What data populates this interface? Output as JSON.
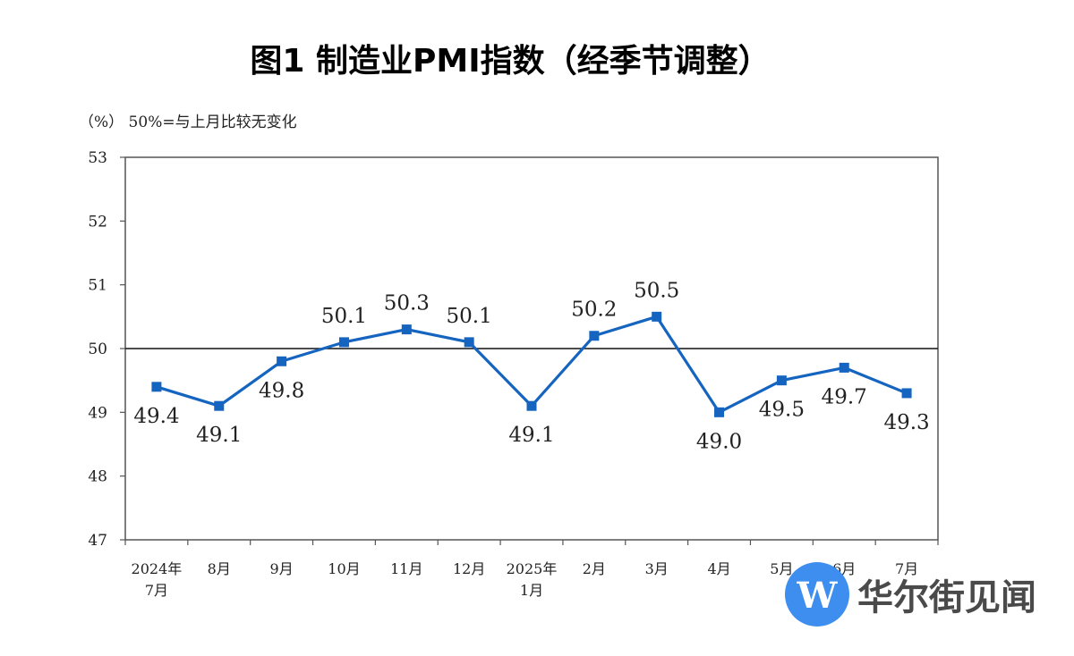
{
  "chart_data": {
    "type": "line",
    "title": "图1  制造业PMI指数（经季节调整）",
    "unit_note": "（%）  50%=与上月比较无变化",
    "categories": [
      [
        "2024年",
        "7月"
      ],
      [
        "8月"
      ],
      [
        "9月"
      ],
      [
        "10月"
      ],
      [
        "11月"
      ],
      [
        "12月"
      ],
      [
        "2025年",
        "1月"
      ],
      [
        "2月"
      ],
      [
        "3月"
      ],
      [
        "4月"
      ],
      [
        "5月"
      ],
      [
        "6月"
      ],
      [
        "7月"
      ]
    ],
    "series": [
      {
        "values": [
          49.4,
          49.1,
          49.8,
          50.1,
          50.3,
          50.1,
          49.1,
          50.2,
          50.5,
          49.0,
          49.5,
          49.7,
          49.3
        ],
        "labels": [
          "49.4",
          "49.1",
          "49.8",
          "50.1",
          "50.3",
          "50.1",
          "49.1",
          "50.2",
          "50.5",
          "49.0",
          "49.5",
          "49.7",
          "49.3"
        ],
        "label_side": [
          "below",
          "below",
          "below",
          "above",
          "above",
          "above",
          "below",
          "above",
          "above",
          "below",
          "below",
          "below",
          "below"
        ],
        "color": "#1565c0"
      }
    ],
    "ylim": [
      47,
      53
    ],
    "yticks": [
      47,
      48,
      49,
      50,
      51,
      52,
      53
    ],
    "reference_line": 50,
    "grid": false
  },
  "watermark": {
    "text": "华尔街见闻",
    "logo_letter": "W",
    "logo_color": "#3e8ef0"
  }
}
